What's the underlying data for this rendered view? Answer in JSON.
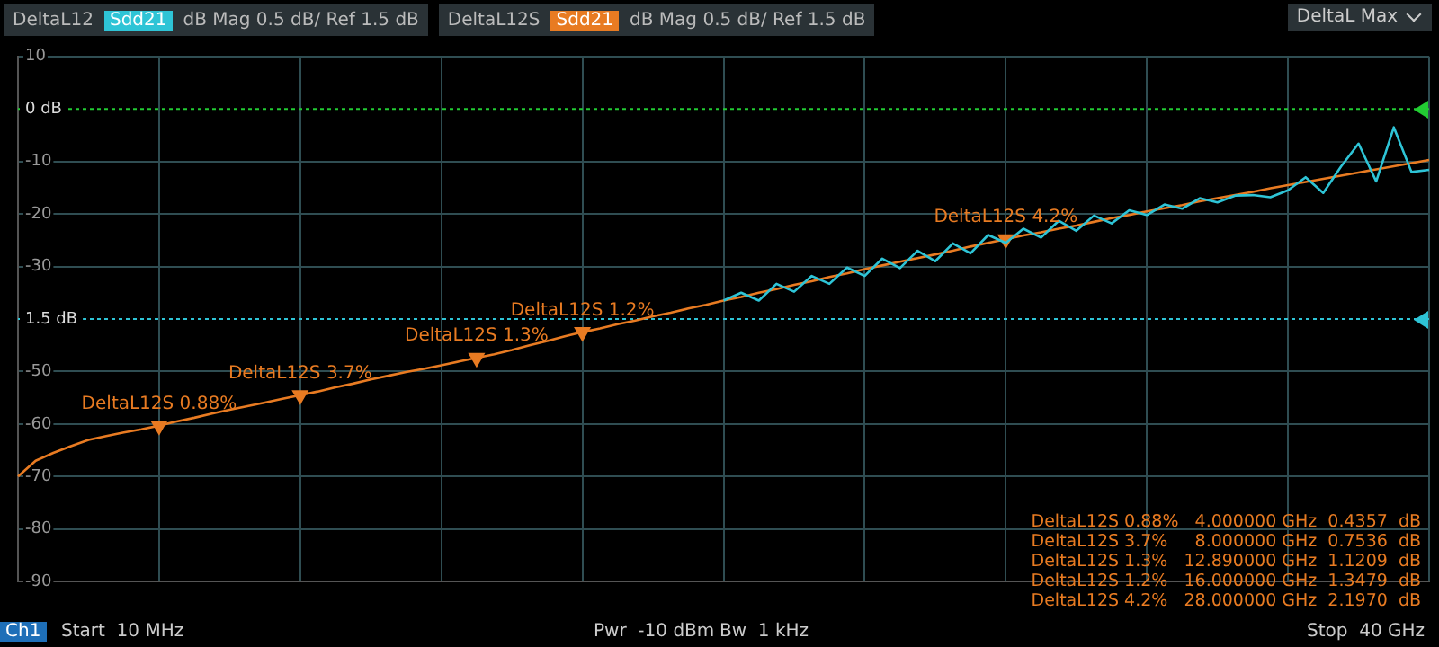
{
  "chart_data": {
    "type": "line",
    "categories": [
      null,
      null,
      null,
      null,
      null,
      null,
      null,
      null,
      null,
      null,
      null,
      null,
      null,
      null,
      null,
      null,
      null,
      null,
      null,
      null,
      null,
      null,
      null,
      null,
      null,
      null,
      null,
      null,
      null,
      null,
      null,
      null,
      null,
      null,
      null,
      null,
      null,
      null,
      null,
      null,
      null,
      null,
      null,
      null,
      null,
      null,
      null,
      null,
      null,
      null,
      null,
      null,
      null,
      null,
      null,
      null,
      null,
      null,
      null,
      null,
      null,
      null,
      null,
      null,
      null,
      null,
      null,
      null,
      null,
      null,
      null,
      null,
      null,
      null,
      null,
      null,
      null,
      null,
      null,
      null,
      null
    ],
    "ylim": [
      -90,
      10
    ],
    "yticks": [
      10,
      -10,
      -20,
      -30,
      -50,
      -60,
      -70,
      -80,
      -90
    ],
    "grid": true,
    "legend": "top left",
    "marker": "none",
    "line_style": "solid",
    "ref_lines": [
      {
        "axis": "y",
        "value": 0,
        "label": "0 dB",
        "color": "#22cc33",
        "line_style": "dotted"
      },
      {
        "axis": "y",
        "value": -40,
        "label": "1.5 dB",
        "color": "#2ec4d6",
        "line_style": "dotted"
      }
    ],
    "series": [
      {
        "name": "DeltaL12",
        "color": "#2ec4d6",
        "values": [
          null,
          null,
          null,
          null,
          null,
          null,
          null,
          null,
          null,
          null,
          null,
          null,
          null,
          null,
          null,
          null,
          null,
          null,
          null,
          null,
          null,
          null,
          null,
          null,
          null,
          null,
          null,
          null,
          null,
          null,
          null,
          null,
          null,
          null,
          null,
          null,
          null,
          null,
          null,
          null,
          -36.5,
          -35,
          -36.5,
          -33.3,
          -34.8,
          -31.8,
          -33.3,
          -30.2,
          -31.8,
          -28.5,
          -30.3,
          -27,
          -29,
          -25.6,
          -27.5,
          -24,
          -25.5,
          -22.8,
          -24.5,
          -21.3,
          -23.2,
          -20.3,
          -21.8,
          -19.3,
          -20.2,
          -18.2,
          -19,
          -17,
          -17.8,
          -16.5,
          -16.4,
          -16.8,
          -15.5,
          -13,
          -16,
          -11,
          -6.6,
          -13.8,
          -3.5,
          -12,
          -11.6
        ]
      },
      {
        "name": "DeltaL12S",
        "color": "#e87b22",
        "values": [
          -70,
          -67,
          -65.5,
          -64.2,
          -63,
          -62.3,
          -61.6,
          -61,
          -60.3,
          -59.5,
          -58.8,
          -58,
          -57.3,
          -56.6,
          -55.9,
          -55.2,
          -54.5,
          -53.8,
          -53,
          -52.3,
          -51.5,
          -50.8,
          -50.1,
          -49.5,
          -48.8,
          -48.1,
          -47.4,
          -46.7,
          -45.9,
          -45,
          -44.2,
          -43.3,
          -42.5,
          -41.8,
          -41,
          -40.3,
          -39.5,
          -38.8,
          -38,
          -37.3,
          -36.5,
          -35.8,
          -35,
          -34.3,
          -33.5,
          -32.8,
          -32,
          -31.3,
          -30.5,
          -29.8,
          -29.1,
          -28.4,
          -27.7,
          -27,
          -26.2,
          -25.5,
          -24.8,
          -24.1,
          -23.5,
          -22.8,
          -22.2,
          -21.5,
          -20.8,
          -20.2,
          -19.5,
          -18.9,
          -18.3,
          -17.6,
          -17,
          -16.4,
          -15.8,
          -15.1,
          -14.5,
          -13.9,
          -13.3,
          -12.7,
          -12.1,
          -11.5,
          -10.9,
          -10.3,
          -9.7
        ]
      },
      {
        "type": "scatter",
        "marker": "triangle",
        "color": "#e87b22",
        "values": [
          null,
          null,
          null,
          null,
          null,
          null,
          null,
          null,
          -60.3,
          null,
          null,
          null,
          null,
          null,
          null,
          null,
          -54.5,
          null,
          null,
          null,
          null,
          null,
          null,
          null,
          null,
          null,
          -47.4,
          null,
          null,
          null,
          null,
          null,
          -42.5,
          null,
          null,
          null,
          null,
          null,
          null,
          null,
          null,
          null,
          null,
          null,
          null,
          null,
          null,
          null,
          null,
          null,
          null,
          null,
          null,
          null,
          null,
          null,
          -24.8,
          null,
          null,
          null,
          null,
          null,
          null,
          null,
          null,
          null,
          null,
          null,
          null,
          null,
          null,
          null,
          null,
          null,
          null,
          null,
          null,
          null,
          null,
          null,
          null
        ]
      }
    ],
    "annotations": [
      "Sdd21",
      "dB Mag  0.5 dB/ Ref 1.5 dB",
      "Sdd21",
      "dB Mag  0.5 dB/ Ref 1.5 dB",
      "DeltaL Max",
      "Ch1",
      "Start  10 MHz",
      "Pwr  -10 dBm",
      "Bw  1 kHz",
      "Stop  40 GHz",
      "DeltaL12S 0.88%",
      "DeltaL12S 3.7%",
      "DeltaL12S 1.3%",
      "DeltaL12S 1.2%",
      "DeltaL12S 4.2%",
      "DeltaL12S 0.88%   4.000000 GHz  0.4357  dB",
      "DeltaL12S 3.7%     8.000000 GHz  0.7536  dB",
      "DeltaL12S 1.3%   12.890000 GHz  1.1209  dB",
      "DeltaL12S 1.2%   16.000000 GHz  1.3479  dB",
      "DeltaL12S 4.2%   28.000000 GHz  2.1970  dB"
    ]
  }
}
